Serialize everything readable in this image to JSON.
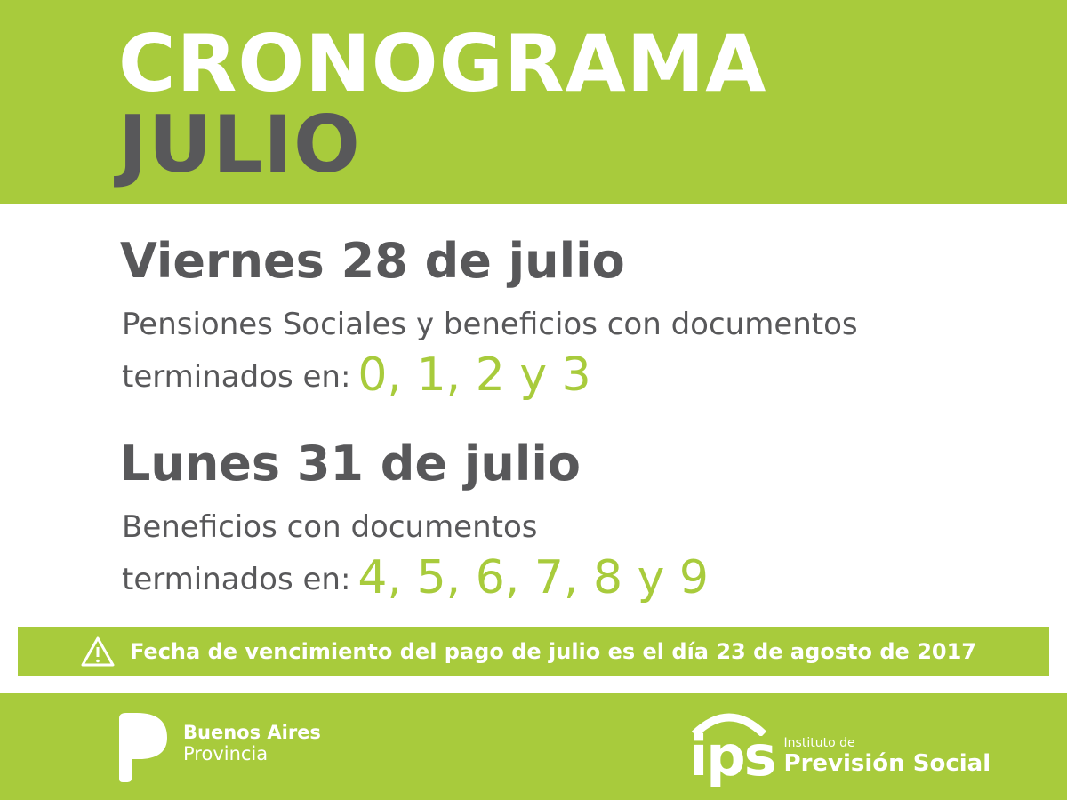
{
  "header": {
    "title": "CRONOGRAMA",
    "month": "JULIO"
  },
  "schedule": [
    {
      "day": "Viernes 28 de julio",
      "description": "Pensiones Sociales y beneficios con documentos",
      "ending_label": "terminados en:",
      "digits": "0, 1, 2 y 3"
    },
    {
      "day": "Lunes 31 de julio",
      "description": "Beneficios con documentos",
      "ending_label": "terminados en:",
      "digits": "4, 5, 6, 7, 8 y 9"
    }
  ],
  "notice": {
    "icon": "warning-icon",
    "text": "Fecha de vencimiento del pago de julio es el día 23 de agosto de 2017"
  },
  "footer": {
    "ba_logo": {
      "line1": "Buenos Aires",
      "line2": "Provincia"
    },
    "ips_logo": {
      "mark": "ips",
      "line1": "Instituto de",
      "line2": "Previsión Social"
    }
  },
  "colors": {
    "green": "#a8cb3c",
    "gray": "#58585a",
    "white": "#ffffff"
  }
}
